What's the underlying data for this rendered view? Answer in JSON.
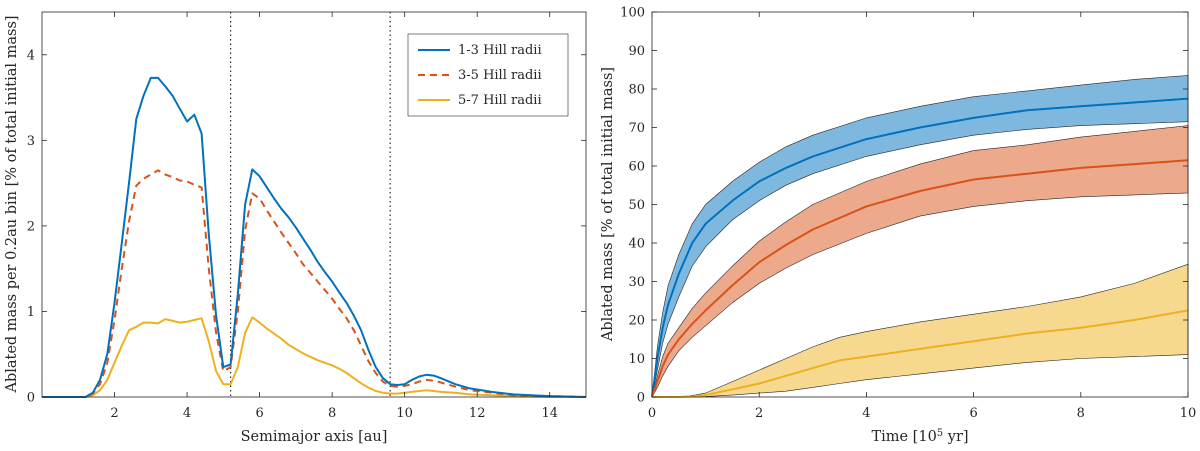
{
  "colors": {
    "blue": "#0072BD",
    "orange": "#D95319",
    "yellow": "#EDB120",
    "axis": "#262626"
  },
  "chart_data": [
    {
      "type": "line",
      "xlabel": "Semimajor axis [au]",
      "ylabel": "Ablated mass per 0.2au bin [% of total initial mass]",
      "xlim": [
        0,
        15
      ],
      "ylim": [
        0,
        4.5
      ],
      "xticks": [
        "2",
        "4",
        "6",
        "8",
        "10",
        "12",
        "14"
      ],
      "yticks": [
        "0",
        "1",
        "2",
        "3",
        "4"
      ],
      "vlines": [
        5.2,
        9.6
      ],
      "legend_position": "top-right",
      "series": [
        {
          "name": "1-3 Hill radii",
          "style": "solid",
          "x": [
            0,
            1.2,
            1.4,
            1.6,
            1.8,
            2.0,
            2.2,
            2.4,
            2.6,
            2.8,
            3.0,
            3.2,
            3.4,
            3.6,
            3.8,
            4.0,
            4.2,
            4.4,
            4.6,
            4.8,
            5.0,
            5.2,
            5.4,
            5.6,
            5.8,
            6.0,
            6.2,
            6.4,
            6.6,
            6.8,
            7.0,
            7.2,
            7.4,
            7.6,
            7.8,
            8.0,
            8.2,
            8.4,
            8.6,
            8.8,
            9.0,
            9.2,
            9.4,
            9.6,
            9.8,
            10.0,
            10.2,
            10.4,
            10.6,
            10.8,
            11.0,
            11.4,
            11.8,
            12.4,
            13.0,
            14.0,
            15.0
          ],
          "y": [
            0,
            0.0,
            0.05,
            0.2,
            0.5,
            1.1,
            1.8,
            2.5,
            3.25,
            3.52,
            3.73,
            3.73,
            3.63,
            3.52,
            3.37,
            3.22,
            3.3,
            3.08,
            1.9,
            0.95,
            0.35,
            0.38,
            1.2,
            2.25,
            2.66,
            2.58,
            2.45,
            2.32,
            2.2,
            2.1,
            1.98,
            1.85,
            1.72,
            1.58,
            1.46,
            1.35,
            1.22,
            1.1,
            0.95,
            0.78,
            0.55,
            0.35,
            0.22,
            0.15,
            0.14,
            0.15,
            0.2,
            0.24,
            0.26,
            0.25,
            0.22,
            0.15,
            0.1,
            0.06,
            0.03,
            0.01,
            0.0
          ]
        },
        {
          "name": "3-5 Hill radii",
          "style": "dashed",
          "x": [
            0,
            1.2,
            1.4,
            1.6,
            1.8,
            2.0,
            2.2,
            2.4,
            2.6,
            2.8,
            3.0,
            3.2,
            3.4,
            3.6,
            3.8,
            4.0,
            4.2,
            4.4,
            4.6,
            4.8,
            5.0,
            5.2,
            5.4,
            5.6,
            5.8,
            6.0,
            6.2,
            6.4,
            6.6,
            6.8,
            7.0,
            7.2,
            7.4,
            7.6,
            7.8,
            8.0,
            8.2,
            8.4,
            8.6,
            8.8,
            9.0,
            9.2,
            9.4,
            9.6,
            9.8,
            10.0,
            10.2,
            10.4,
            10.6,
            10.8,
            11.0,
            11.4,
            11.8,
            12.4,
            13.0,
            14.0,
            15.0
          ],
          "y": [
            0,
            0.0,
            0.04,
            0.15,
            0.4,
            0.9,
            1.5,
            2.05,
            2.47,
            2.55,
            2.6,
            2.65,
            2.6,
            2.57,
            2.53,
            2.52,
            2.48,
            2.45,
            1.5,
            0.75,
            0.3,
            0.35,
            1.0,
            1.95,
            2.38,
            2.32,
            2.18,
            2.05,
            1.92,
            1.8,
            1.68,
            1.55,
            1.45,
            1.35,
            1.25,
            1.15,
            1.03,
            0.92,
            0.78,
            0.6,
            0.42,
            0.28,
            0.18,
            0.13,
            0.12,
            0.13,
            0.15,
            0.18,
            0.2,
            0.19,
            0.17,
            0.12,
            0.08,
            0.05,
            0.02,
            0.01,
            0.0
          ]
        },
        {
          "name": "5-7 Hill radii",
          "style": "solid",
          "x": [
            0,
            1.2,
            1.4,
            1.6,
            1.8,
            2.0,
            2.2,
            2.4,
            2.6,
            2.8,
            3.0,
            3.2,
            3.4,
            3.6,
            3.8,
            4.0,
            4.2,
            4.4,
            4.6,
            4.8,
            5.0,
            5.2,
            5.4,
            5.6,
            5.8,
            6.0,
            6.2,
            6.4,
            6.6,
            6.8,
            7.0,
            7.2,
            7.4,
            7.6,
            7.8,
            8.0,
            8.2,
            8.4,
            8.6,
            8.8,
            9.0,
            9.2,
            9.4,
            9.6,
            9.8,
            10.0,
            10.2,
            10.4,
            10.6,
            10.8,
            11.0,
            11.4,
            11.8,
            12.4,
            13.0,
            14.0,
            15.0
          ],
          "y": [
            0,
            0.0,
            0.02,
            0.08,
            0.2,
            0.4,
            0.6,
            0.78,
            0.82,
            0.87,
            0.87,
            0.86,
            0.91,
            0.89,
            0.87,
            0.88,
            0.9,
            0.92,
            0.65,
            0.3,
            0.15,
            0.15,
            0.35,
            0.75,
            0.93,
            0.87,
            0.8,
            0.74,
            0.68,
            0.61,
            0.56,
            0.51,
            0.47,
            0.43,
            0.4,
            0.37,
            0.33,
            0.28,
            0.22,
            0.16,
            0.11,
            0.07,
            0.05,
            0.04,
            0.04,
            0.05,
            0.06,
            0.07,
            0.08,
            0.07,
            0.06,
            0.05,
            0.03,
            0.02,
            0.01,
            0.0,
            0.0
          ]
        }
      ]
    },
    {
      "type": "area",
      "xlabel_prefix": "Time [10",
      "xlabel_exp": "5",
      "xlabel_suffix": " yr]",
      "ylabel": "Ablated mass [% of total initial mass]",
      "xlim": [
        0,
        10
      ],
      "ylim": [
        0,
        100
      ],
      "xticks": [
        "0",
        "2",
        "4",
        "6",
        "8",
        "10"
      ],
      "yticks": [
        "0",
        "10",
        "20",
        "30",
        "40",
        "50",
        "60",
        "70",
        "80",
        "90",
        "100"
      ],
      "series": [
        {
          "name": "1-3 Hill radii",
          "x": [
            0,
            0.1,
            0.2,
            0.3,
            0.5,
            0.75,
            1.0,
            1.5,
            2.0,
            2.5,
            3.0,
            4.0,
            5.0,
            6.0,
            7.0,
            8.0,
            9.0,
            10.0
          ],
          "mean": [
            0,
            10,
            18,
            24,
            32,
            40,
            45,
            51,
            56,
            59.5,
            62.5,
            67,
            70,
            72.5,
            74.5,
            75.5,
            76.5,
            77.5
          ],
          "low": [
            0,
            7,
            14,
            19,
            26,
            34,
            39,
            46,
            51,
            55,
            58,
            62.5,
            65.5,
            68,
            69.5,
            70.5,
            71,
            71.5
          ],
          "high": [
            0,
            13,
            22,
            29,
            37,
            45,
            50,
            56,
            61,
            65,
            68,
            72.5,
            75.5,
            78,
            79.5,
            81,
            82.5,
            83.5
          ]
        },
        {
          "name": "3-5 Hill radii",
          "x": [
            0,
            0.1,
            0.2,
            0.3,
            0.5,
            0.75,
            1.0,
            1.5,
            2.0,
            2.5,
            3.0,
            4.0,
            5.0,
            6.0,
            7.0,
            8.0,
            9.0,
            10.0
          ],
          "mean": [
            0,
            4,
            8,
            11,
            15,
            19,
            22.5,
            29,
            35,
            39.5,
            43.5,
            49.5,
            53.5,
            56.5,
            58,
            59.5,
            60.5,
            61.5
          ],
          "low": [
            0,
            2.5,
            5.5,
            8,
            12,
            15.5,
            18.5,
            24.5,
            29.5,
            33.5,
            37,
            42.5,
            47,
            49.5,
            51,
            52,
            52.5,
            53
          ],
          "high": [
            0,
            5.5,
            10.5,
            14,
            18,
            23,
            27,
            34,
            40.5,
            45.5,
            50,
            56,
            60.5,
            64,
            65.5,
            67.5,
            69,
            70.5
          ]
        },
        {
          "name": "5-7 Hill radii",
          "x": [
            0,
            0.5,
            0.8,
            1.0,
            1.5,
            2.0,
            2.5,
            3.0,
            3.5,
            4.0,
            5.0,
            6.0,
            7.0,
            8.0,
            9.0,
            10.0
          ],
          "mean": [
            0,
            0,
            0.2,
            0.5,
            2,
            3.5,
            5.5,
            7.5,
            9.5,
            10.5,
            12.5,
            14.5,
            16.5,
            18,
            20,
            22.5
          ],
          "low": [
            0,
            0,
            0,
            0.1,
            0.5,
            1,
            1.5,
            2.5,
            3.5,
            4.5,
            6,
            7.5,
            9,
            10,
            10.5,
            11
          ],
          "high": [
            0,
            0,
            0.5,
            1,
            4,
            7,
            10,
            13,
            15.5,
            17,
            19.5,
            21.5,
            23.5,
            26,
            29.5,
            34.5
          ]
        }
      ]
    }
  ]
}
